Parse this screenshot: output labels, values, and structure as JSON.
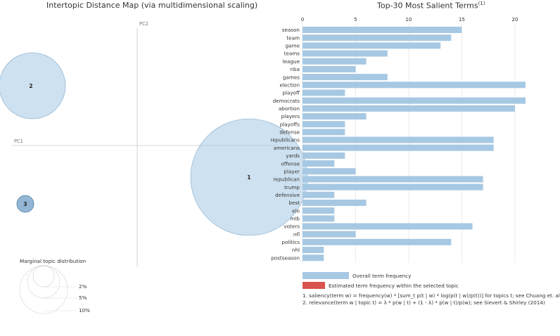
{
  "left_title": "Intertopic Distance Map (via multidimensional scaling)",
  "right_title": "Top-30 Most Salient Terms",
  "right_title_sup": "(1)",
  "axis_labels": {
    "pc1": "PC1",
    "pc2": "PC2"
  },
  "marginal": {
    "title": "Marginal topic distribution",
    "levels": [
      "2%",
      "5%",
      "10%"
    ]
  },
  "topics": [
    {
      "label": "1",
      "color": "#a6c8e3"
    },
    {
      "label": "2",
      "color": "#a6c8e3"
    },
    {
      "label": "3",
      "color": "#a6c8e3"
    }
  ],
  "legend": {
    "overall": "Overall term frequency",
    "estimated": "Estimated term frequency within the selected topic",
    "overall_color": "#a6c8e3",
    "estimated_color": "#d9534f"
  },
  "notes": [
    "1. saliency(term w) = frequency(w) * [sum_t p(t | w) * log(p(t | w)/p(t))] for topics t; see Chuang et. al",
    "2. relevance(term w | topic t) = λ * p(w | t) + (1 - λ) * p(w | t)/p(w); see Sievert & Shirley (2014)"
  ],
  "chart_data": {
    "type": "bar",
    "title": "Top-30 Most Salient Terms",
    "xticks": [
      0,
      5,
      10,
      15,
      20
    ],
    "xlim": [
      0,
      21
    ],
    "bar_color": "#a6c8e3",
    "categories": [
      "season",
      "team",
      "game",
      "teams",
      "league",
      "nba",
      "games",
      "election",
      "playoff",
      "democrats",
      "abortion",
      "players",
      "playoffs",
      "defense",
      "republicans",
      "americans",
      "yards",
      "offense",
      "player",
      "republican",
      "trump",
      "defensive",
      "best",
      "elo",
      "mlb",
      "voters",
      "nfl",
      "politics",
      "nhl",
      "postseason"
    ],
    "values": [
      15,
      14,
      13,
      8,
      6,
      5,
      8,
      21,
      4,
      21,
      20,
      6,
      4,
      4,
      18,
      18,
      4,
      3,
      5,
      17,
      17,
      3,
      6,
      3,
      3,
      16,
      5,
      14,
      2,
      2
    ]
  }
}
